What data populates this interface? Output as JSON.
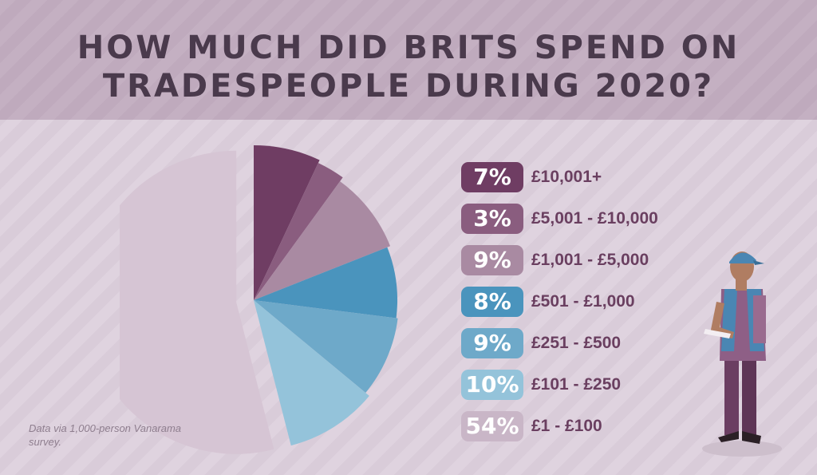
{
  "chart_data": {
    "type": "pie",
    "title": "HOW MUCH DID BRITS SPEND ON TRADESPEOPLE DURING 2020?",
    "categories": [
      "£10,001+",
      "£5,001 - £10,000",
      "£1,001 - £5,000",
      "£501 - £1,000",
      "£251 - £500",
      "£101 - £250",
      "£1 - £100"
    ],
    "values": [
      7,
      3,
      9,
      8,
      9,
      10,
      54
    ],
    "value_labels": [
      "7%",
      "3%",
      "9%",
      "8%",
      "9%",
      "10%",
      "54%"
    ],
    "colors": [
      "#6f3d63",
      "#8a5d7f",
      "#a98aa2",
      "#4a94bd",
      "#6ea9c9",
      "#94c3da",
      "#d6c5d4"
    ],
    "legend_position": "right",
    "exploded_slice": "£1 - £100",
    "note": "Data via 1,000-person Vanarama survey."
  },
  "title_lines": [
    "HOW MUCH DID BRITS SPEND ON",
    "TRADESPEOPLE DURING 2020?"
  ]
}
